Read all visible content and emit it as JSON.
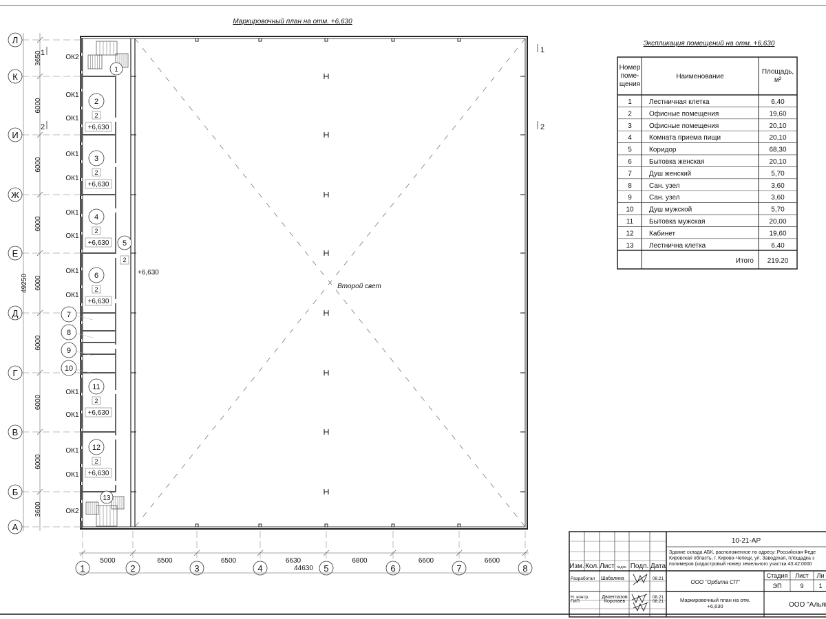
{
  "plan": {
    "title": "Маркировочный план на отм. +6,630",
    "second_light_label": "Второй свет",
    "corridor_level": "+6,630",
    "row_axes": [
      "Л",
      "К",
      "И",
      "Ж",
      "Е",
      "Д",
      "Г",
      "В",
      "Б",
      "А"
    ],
    "row_dims": [
      "3650",
      "6000",
      "6000",
      "6000",
      "6000",
      "6000",
      "6000",
      "6000",
      "3600"
    ],
    "row_total": "49250",
    "col_axes": [
      "1",
      "2",
      "3",
      "4",
      "5",
      "6",
      "7",
      "8"
    ],
    "col_dims": [
      "5000",
      "6500",
      "6500",
      "6630",
      "6800",
      "6600",
      "6600"
    ],
    "col_total": "44630",
    "section_marks": [
      "1",
      "2"
    ],
    "window_labels": [
      "ОК2",
      "ОК1",
      "ОК1",
      "ОК1",
      "ОК1",
      "ОК1",
      "ОК1",
      "ОК1",
      "ОК1",
      "ОК1",
      "ОК1",
      "ОК1",
      "ОК1",
      "ОК2"
    ],
    "offices": [
      {
        "num": "2",
        "type": "2",
        "level": "+6,630"
      },
      {
        "num": "3",
        "type": "2",
        "level": "+6,630"
      },
      {
        "num": "4",
        "type": "2",
        "level": "+6,630"
      },
      {
        "num": "6",
        "type": "2",
        "level": "+6,630"
      },
      {
        "num": "11",
        "type": "2",
        "level": "+6,630"
      },
      {
        "num": "12",
        "type": "2",
        "level": "+6,630"
      }
    ],
    "corridor": {
      "num": "5",
      "type": "2"
    },
    "small_rooms": [
      "7",
      "8",
      "9",
      "10"
    ],
    "stair_rooms": [
      "1",
      "13"
    ]
  },
  "explication": {
    "title": "Экспликация помещений на отм. +6,630",
    "headers": [
      "Номер",
      "поме-",
      "щения",
      "Наименование",
      "Площадь,",
      "м²"
    ],
    "rows": [
      [
        "1",
        "Лестничная клетка",
        "6,40"
      ],
      [
        "2",
        "Офисные помещения",
        "19,60"
      ],
      [
        "3",
        "Офисные помещения",
        "20,10"
      ],
      [
        "4",
        "Комната приема пищи",
        "20,10"
      ],
      [
        "5",
        "Коридор",
        "68,30"
      ],
      [
        "6",
        "Бытовка женская",
        "20,10"
      ],
      [
        "7",
        "Душ женский",
        "5,70"
      ],
      [
        "8",
        "Сан. узел",
        "3,60"
      ],
      [
        "9",
        "Сан. узел",
        "3,60"
      ],
      [
        "10",
        "Душ мужской",
        "5,70"
      ],
      [
        "11",
        "Бытовка мужская",
        "20,00"
      ],
      [
        "12",
        "Кабинет",
        "19,60"
      ],
      [
        "13",
        "Лестнична клетка",
        "6,40"
      ]
    ],
    "total_label": "Итого",
    "total_value": "219.20"
  },
  "title_block": {
    "code": "10-21-АР",
    "address": [
      "Здание склада АБК, расположенное по адресу: Российская Феде",
      "Кировская область, г. Кирово-Чепецк, ул. Заводская, площадка з",
      "полимеров (кадастровый номер земельного участка 43:42:0000"
    ],
    "headers": [
      "Изм.",
      "Кол.",
      "Лист",
      "№док.",
      "Подп.",
      "Дата"
    ],
    "people": [
      {
        "role": "Разработал",
        "name": "Шабалина",
        "date": "08.21"
      },
      {
        "role": "Н. контр.",
        "name": "Двоеглазов",
        "date": "08.21"
      },
      {
        "role": "ГИП",
        "name": "Коротаев",
        "date": "08.21"
      }
    ],
    "company": "ООО \"Орбита СП\"",
    "sheet_title": [
      "Маркировочный план на отм.",
      "+6,630"
    ],
    "stage_headers": [
      "Стадия",
      "Лист",
      "Ли"
    ],
    "stage": "ЭП",
    "sheet": "9",
    "sheets": "1",
    "organization": "ООО \"Альянс"
  }
}
